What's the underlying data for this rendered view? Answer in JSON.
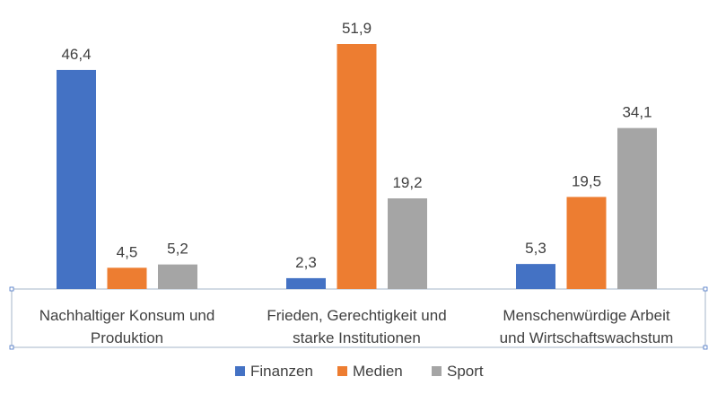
{
  "chart_data": {
    "type": "bar",
    "title": "",
    "xlabel": "",
    "ylabel": "",
    "ylim": [
      0,
      55
    ],
    "grid": false,
    "legend_position": "bottom",
    "categories": [
      [
        "Nachhaltiger Konsum und",
        "Produktion"
      ],
      [
        "Frieden, Gerechtigkeit und",
        "starke Institutionen"
      ],
      [
        "Menschenwürdige Arbeit",
        "und Wirtschaftswachstum"
      ]
    ],
    "series": [
      {
        "name": "Finanzen",
        "color": "#4472C4",
        "values": [
          46.4,
          2.3,
          5.3
        ],
        "labels": [
          "46,4",
          "2,3",
          "5,3"
        ]
      },
      {
        "name": "Medien",
        "color": "#ED7D31",
        "values": [
          4.5,
          51.9,
          19.5
        ],
        "labels": [
          "4,5",
          "51,9",
          "19,5"
        ]
      },
      {
        "name": "Sport",
        "color": "#A5A5A5",
        "values": [
          5.2,
          19.2,
          34.1
        ],
        "labels": [
          "5,2",
          "19,2",
          "34,1"
        ]
      }
    ]
  }
}
